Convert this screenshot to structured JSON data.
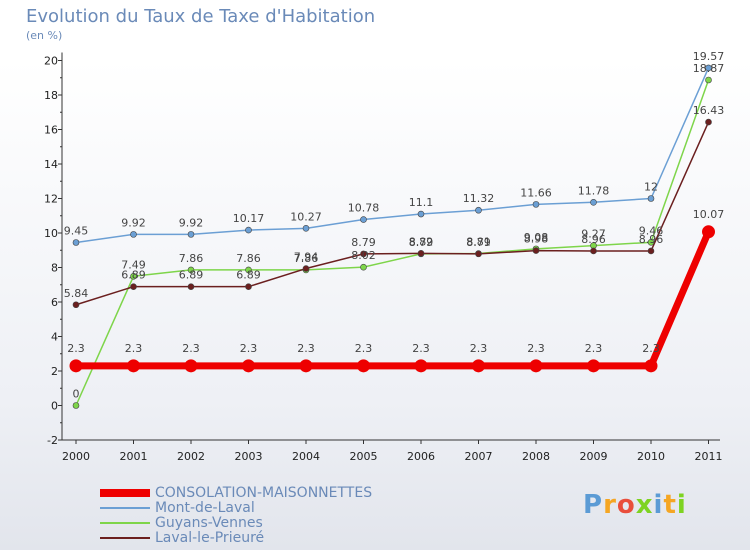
{
  "chart_data": {
    "type": "line",
    "title": "Evolution du Taux de Taxe d'Habitation",
    "ylabel": "(en %)",
    "xlabel": "",
    "ylim": [
      -2,
      20
    ],
    "yticks": [
      -2,
      0,
      2,
      4,
      6,
      8,
      10,
      12,
      14,
      16,
      18,
      20
    ],
    "categories": [
      "2000",
      "2001",
      "2002",
      "2003",
      "2004",
      "2005",
      "2006",
      "2007",
      "2008",
      "2009",
      "2010",
      "2011"
    ],
    "grid": false,
    "legend": "bottom-left",
    "series": [
      {
        "name": "Mont-de-Laval",
        "color": "#6b9fd4",
        "values": [
          9.45,
          9.92,
          9.92,
          10.17,
          10.27,
          10.78,
          11.1,
          11.32,
          11.66,
          11.78,
          12,
          19.57
        ]
      },
      {
        "name": "Guyans-Vennes",
        "color": "#7ed54a",
        "values": [
          0,
          7.49,
          7.86,
          7.86,
          7.86,
          8.02,
          8.79,
          8.81,
          9.08,
          9.27,
          9.46,
          18.87
        ]
      },
      {
        "name": "Laval-le-Prieuré",
        "color": "#6b1f1f",
        "values": [
          5.84,
          6.89,
          6.89,
          6.89,
          7.94,
          8.79,
          8.82,
          8.79,
          8.98,
          8.96,
          8.96,
          16.43
        ]
      },
      {
        "name": "CONSOLATION-MAISONNETTES",
        "color": "#ee0000",
        "values": [
          2.3,
          2.3,
          2.3,
          2.3,
          2.3,
          2.3,
          2.3,
          2.3,
          2.3,
          2.3,
          2.3,
          10.07
        ],
        "highlight": true
      }
    ],
    "data_labels": [
      [
        "9.45",
        "9.92",
        "9.92",
        "10.17",
        "10.27",
        "10.78",
        "11.1",
        "11.32",
        "11.66",
        "11.78",
        "12",
        "19.57"
      ],
      [
        "0",
        "7.49",
        "7.86",
        "7.86",
        "7.86",
        "8.02",
        "8.79",
        "8.81",
        "9.08",
        "9.27",
        "9.46",
        "18.87"
      ],
      [
        "5.84",
        "6.89",
        "6.89",
        "6.89",
        "7.94",
        "8.79",
        "8.82",
        "8.79",
        "8.98",
        "8.96",
        "8.96",
        "16.43"
      ],
      [
        "2.3",
        "2.3",
        "2.3",
        "2.3",
        "2.3",
        "2.3",
        "2.3",
        "2.3",
        "2.3",
        "2.3",
        "2.3",
        "10.07"
      ]
    ]
  },
  "legend": {
    "items": [
      "CONSOLATION-MAISONNETTES",
      "Mont-de-Laval",
      "Guyans-Vennes",
      "Laval-le-Prieuré"
    ]
  },
  "logo": {
    "text": "Proxiti"
  }
}
